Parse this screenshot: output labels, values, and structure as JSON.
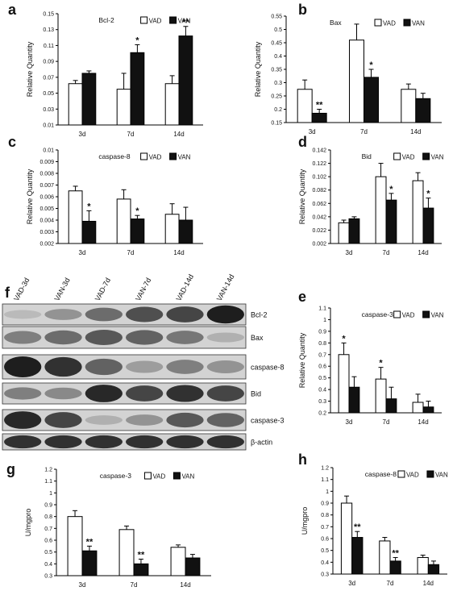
{
  "legend": {
    "vad": "VAD",
    "van": "VAN"
  },
  "colors": {
    "vad_fill": "#ffffff",
    "van_fill": "#111111",
    "stroke": "#000000"
  },
  "chart_data": [
    {
      "id": "a",
      "panel_label": "a",
      "type": "bar",
      "title": "Bcl-2",
      "categories": [
        "3d",
        "7d",
        "14d"
      ],
      "series": [
        {
          "name": "VAD",
          "values": [
            0.062,
            0.055,
            0.062
          ],
          "errors": [
            0.004,
            0.02,
            0.01
          ]
        },
        {
          "name": "VAN",
          "values": [
            0.075,
            0.101,
            0.122
          ],
          "errors": [
            0.003,
            0.01,
            0.012
          ]
        }
      ],
      "sig": [
        [
          "",
          ""
        ],
        [
          "",
          "*"
        ],
        [
          "",
          "**"
        ]
      ],
      "ylabel": "Relative Quantity",
      "yticks": [
        "0.01",
        "0.03",
        "0.05",
        "0.07",
        "0.09",
        "0.11",
        "0.13",
        "0.15"
      ],
      "ylim": [
        0.01,
        0.15
      ],
      "legend_position": "top-right"
    },
    {
      "id": "b",
      "panel_label": "b",
      "type": "bar",
      "title": "Bax",
      "categories": [
        "3d",
        "7d",
        "14d"
      ],
      "series": [
        {
          "name": "VAD",
          "values": [
            0.275,
            0.46,
            0.275
          ],
          "errors": [
            0.035,
            0.06,
            0.02
          ]
        },
        {
          "name": "VAN",
          "values": [
            0.185,
            0.32,
            0.24
          ],
          "errors": [
            0.015,
            0.03,
            0.02
          ]
        }
      ],
      "sig": [
        [
          "",
          "**"
        ],
        [
          "",
          "*"
        ],
        [
          "",
          ""
        ]
      ],
      "ylabel": "Relative Quantity",
      "yticks": [
        "0.15",
        "0.2",
        "0.25",
        "0.3",
        "0.35",
        "0.4",
        "0.45",
        "0.5",
        "0.55"
      ],
      "ylim": [
        0.15,
        0.55
      ],
      "legend_position": "top-right"
    },
    {
      "id": "c",
      "panel_label": "c",
      "type": "bar",
      "title": "caspase-8",
      "categories": [
        "3d",
        "7d",
        "14d"
      ],
      "series": [
        {
          "name": "VAD",
          "values": [
            0.0065,
            0.0058,
            0.0045
          ],
          "errors": [
            0.0004,
            0.0008,
            0.0009
          ]
        },
        {
          "name": "VAN",
          "values": [
            0.0039,
            0.0041,
            0.004
          ],
          "errors": [
            0.0009,
            0.0003,
            0.0011
          ]
        }
      ],
      "sig": [
        [
          "",
          "*"
        ],
        [
          "",
          "*"
        ],
        [
          "",
          ""
        ]
      ],
      "ylabel": "Relative Quantity",
      "yticks": [
        "0.002",
        "0.003",
        "0.004",
        "0.005",
        "0.006",
        "0.007",
        "0.008",
        "0.009",
        "0.01"
      ],
      "ylim": [
        0.002,
        0.01
      ],
      "legend_position": "top-right"
    },
    {
      "id": "d",
      "panel_label": "d",
      "type": "bar",
      "title": "Bid",
      "categories": [
        "3d",
        "7d",
        "14d"
      ],
      "series": [
        {
          "name": "VAD",
          "values": [
            0.033,
            0.102,
            0.096
          ],
          "errors": [
            0.004,
            0.02,
            0.012
          ]
        },
        {
          "name": "VAN",
          "values": [
            0.039,
            0.067,
            0.055
          ],
          "errors": [
            0.003,
            0.01,
            0.015
          ]
        }
      ],
      "sig": [
        [
          "",
          ""
        ],
        [
          "",
          "*"
        ],
        [
          "",
          "*"
        ]
      ],
      "ylabel": "Relative Quantity",
      "yticks": [
        "0.002",
        "0.022",
        "0.042",
        "0.062",
        "0.082",
        "0.102",
        "0.122",
        "0.142"
      ],
      "ylim": [
        0.002,
        0.142
      ],
      "legend_position": "top-right"
    },
    {
      "id": "e",
      "panel_label": "e",
      "type": "bar",
      "title": "caspase-3",
      "categories": [
        "3d",
        "7d",
        "14d"
      ],
      "series": [
        {
          "name": "VAD",
          "values": [
            0.7,
            0.49,
            0.29
          ],
          "errors": [
            0.1,
            0.1,
            0.07
          ]
        },
        {
          "name": "VAN",
          "values": [
            0.42,
            0.32,
            0.25
          ],
          "errors": [
            0.09,
            0.1,
            0.05
          ]
        }
      ],
      "sig": [
        [
          "*",
          ""
        ],
        [
          "*",
          ""
        ],
        [
          "",
          ""
        ]
      ],
      "ylabel": "Relative Quantity",
      "yticks": [
        "0.2",
        "0.3",
        "0.4",
        "0.5",
        "0.6",
        "0.7",
        "0.8",
        "0.9",
        "1",
        "1.1"
      ],
      "ylim": [
        0.2,
        1.1
      ],
      "legend_position": "top-right"
    },
    {
      "id": "g",
      "panel_label": "g",
      "type": "bar",
      "title": "caspase-3",
      "categories": [
        "3d",
        "7d",
        "14d"
      ],
      "series": [
        {
          "name": "VAD",
          "values": [
            0.8,
            0.69,
            0.54
          ],
          "errors": [
            0.05,
            0.03,
            0.02
          ]
        },
        {
          "name": "VAN",
          "values": [
            0.51,
            0.4,
            0.45
          ],
          "errors": [
            0.04,
            0.04,
            0.03
          ]
        }
      ],
      "sig": [
        [
          "",
          "**"
        ],
        [
          "",
          "**"
        ],
        [
          "",
          ""
        ]
      ],
      "ylabel": "U/mgpro",
      "yticks": [
        "0.3",
        "0.4",
        "0.5",
        "0.6",
        "0.7",
        "0.8",
        "0.9",
        "1",
        "1.1",
        "1.2"
      ],
      "ylim": [
        0.3,
        1.2
      ],
      "legend_position": "top-right"
    },
    {
      "id": "h",
      "panel_label": "h",
      "type": "bar",
      "title": "caspase-8",
      "categories": [
        "3d",
        "7d",
        "14d"
      ],
      "series": [
        {
          "name": "VAD",
          "values": [
            0.9,
            0.58,
            0.44
          ],
          "errors": [
            0.06,
            0.03,
            0.02
          ]
        },
        {
          "name": "VAN",
          "values": [
            0.61,
            0.41,
            0.38
          ],
          "errors": [
            0.05,
            0.03,
            0.03
          ]
        }
      ],
      "sig": [
        [
          "",
          "**"
        ],
        [
          "",
          "**"
        ],
        [
          "",
          ""
        ]
      ],
      "ylabel": "U/mgpro",
      "yticks": [
        "0.3",
        "0.4",
        "0.5",
        "0.6",
        "0.7",
        "0.8",
        "0.9",
        "1",
        "1.1",
        "1.2"
      ],
      "ylim": [
        0.3,
        1.2
      ],
      "legend_position": "top-right"
    }
  ],
  "blot": {
    "panel_label": "f",
    "lanes": [
      "VAD-3d",
      "VAN-3d",
      "VAD-7d",
      "VAN-7d",
      "VAD-14d",
      "VAN-14d"
    ],
    "rows": [
      {
        "label": "Bcl-2",
        "intensities": [
          0.15,
          0.35,
          0.55,
          0.7,
          0.75,
          0.95
        ]
      },
      {
        "label": "Bax",
        "intensities": [
          0.45,
          0.55,
          0.65,
          0.6,
          0.5,
          0.2
        ]
      },
      {
        "label": "caspase-8",
        "intensities": [
          0.95,
          0.85,
          0.6,
          0.3,
          0.45,
          0.35
        ]
      },
      {
        "label": "Bid",
        "intensities": [
          0.45,
          0.4,
          0.9,
          0.75,
          0.85,
          0.75
        ]
      },
      {
        "label": "caspase-3",
        "intensities": [
          0.9,
          0.75,
          0.2,
          0.35,
          0.65,
          0.6
        ]
      },
      {
        "label": "β-actin",
        "intensities": [
          0.85,
          0.85,
          0.85,
          0.85,
          0.85,
          0.85
        ]
      }
    ]
  }
}
